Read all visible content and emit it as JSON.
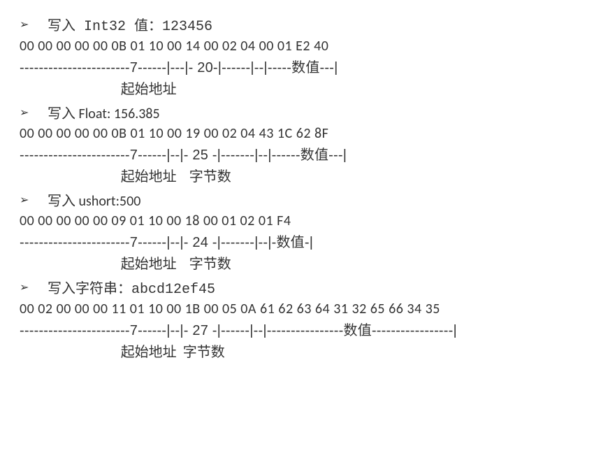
{
  "colors": {
    "text": "#333333",
    "background": "#ffffff"
  },
  "typography": {
    "body_font": "Microsoft YaHei / Calibri",
    "mono_font": "SimSun / Courier",
    "font_size_pt": 14
  },
  "sections": [
    {
      "bullet": "➢",
      "heading": "写入 Int32 值：123456",
      "hex": "00 00 00 00 00 0B 01 10 00 14 00 02 04 00 01 E2 40",
      "ruler": "-----------------------7------|---|- 20-|------|--|-----数值---|",
      "labels": "                                起始地址"
    },
    {
      "bullet": "➢",
      "heading": "写入 Float: 156.385",
      "hex": "00 00 00 00 00 0B 01 10 00 19 00 02 04 43 1C 62 8F",
      "ruler": "-----------------------7------|--|- 25 -|-------|--|------数值---|",
      "labels": "                                起始地址    字节数"
    },
    {
      "bullet": "➢",
      "heading": "写入 ushort:500",
      "hex": "00 00 00 00 00 09 01 10 00 18 00 01 02 01 F4",
      "ruler": "-----------------------7------|--|- 24 -|-------|--|-数值-|",
      "labels": "                                起始地址    字节数"
    },
    {
      "bullet": "➢",
      "heading": "写入字符串：abcd12ef45",
      "hex": "00 02 00 00 00 11 01 10 00 1B 00 05 0A 61 62 63 64 31 32 65 66 34 35",
      "ruler": "-----------------------7------|--|- 27 -|------|--|----------------数值-----------------|",
      "labels": "                                起始地址  字节数"
    }
  ]
}
